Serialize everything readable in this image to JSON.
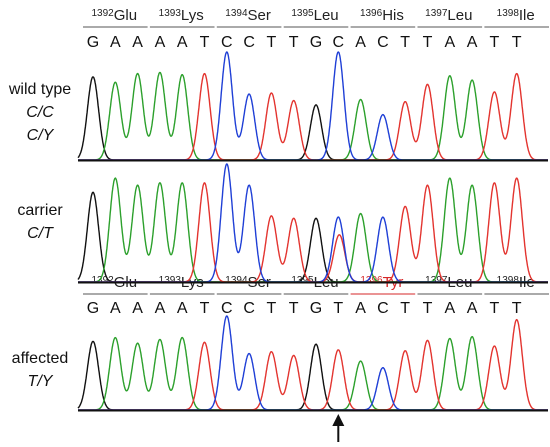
{
  "colors": {
    "A": "#2ca02c",
    "C": "#1f3fd6",
    "G": "#111111",
    "T": "#e3342f",
    "mutation": "#d62728",
    "text": "#111111"
  },
  "top_codons": [
    {
      "number": "1392",
      "aa": "Glu"
    },
    {
      "number": "1393",
      "aa": "Lys"
    },
    {
      "number": "1394",
      "aa": "Ser"
    },
    {
      "number": "1395",
      "aa": "Leu"
    },
    {
      "number": "1396",
      "aa": "His"
    },
    {
      "number": "1397",
      "aa": "Leu"
    },
    {
      "number": "1398",
      "aa": "Ile"
    }
  ],
  "top_bases": [
    "G",
    "A",
    "A",
    "A",
    "A",
    "T",
    "C",
    "C",
    "T",
    "T",
    "G",
    "C",
    "A",
    "C",
    "T",
    "T",
    "A",
    "A",
    "T",
    "T"
  ],
  "bottom_codons": [
    {
      "number": "1392",
      "aa": "Glu"
    },
    {
      "number": "1393",
      "aa": "Lys"
    },
    {
      "number": "1394",
      "aa": "Ser"
    },
    {
      "number": "1395",
      "aa": "Leu"
    },
    {
      "number": "1396",
      "aa": "Tyr",
      "mutated": true
    },
    {
      "number": "1397",
      "aa": "Leu"
    },
    {
      "number": "1398",
      "aa": "Ile"
    }
  ],
  "bottom_bases": [
    "G",
    "A",
    "A",
    "A",
    "A",
    "T",
    "C",
    "C",
    "T",
    "T",
    "G",
    "T",
    "A",
    "C",
    "T",
    "T",
    "A",
    "A",
    "T",
    "T"
  ],
  "mutated_base_index": 11,
  "rows": [
    {
      "name": "wild-type",
      "label": "wild type",
      "genotypes": [
        "C/C",
        "C/Y"
      ],
      "peaks": [
        {
          "base": "G",
          "h": 0.77
        },
        {
          "base": "A",
          "h": 0.72
        },
        {
          "base": "A",
          "h": 0.8
        },
        {
          "base": "A",
          "h": 0.81
        },
        {
          "base": "A",
          "h": 0.79
        },
        {
          "base": "T",
          "h": 0.8
        },
        {
          "base": "C",
          "h": 1.0
        },
        {
          "base": "C",
          "h": 0.61
        },
        {
          "base": "T",
          "h": 0.62
        },
        {
          "base": "T",
          "h": 0.55
        },
        {
          "base": "G",
          "h": 0.51
        },
        {
          "base": "C",
          "h": 1.0
        },
        {
          "base": "A",
          "h": 0.56
        },
        {
          "base": "C",
          "h": 0.42
        },
        {
          "base": "T",
          "h": 0.54
        },
        {
          "base": "T",
          "h": 0.7
        },
        {
          "base": "A",
          "h": 0.78
        },
        {
          "base": "A",
          "h": 0.74
        },
        {
          "base": "T",
          "h": 0.63
        },
        {
          "base": "T",
          "h": 0.8
        }
      ]
    },
    {
      "name": "carrier",
      "label": "carrier",
      "genotypes": [
        "C/T"
      ],
      "peaks": [
        {
          "base": "G",
          "h": 0.76
        },
        {
          "base": "A",
          "h": 0.88
        },
        {
          "base": "A",
          "h": 0.82
        },
        {
          "base": "A",
          "h": 0.84
        },
        {
          "base": "A",
          "h": 0.84
        },
        {
          "base": "T",
          "h": 0.84
        },
        {
          "base": "C",
          "h": 1.0
        },
        {
          "base": "C",
          "h": 0.82
        },
        {
          "base": "T",
          "h": 0.56
        },
        {
          "base": "T",
          "h": 0.54
        },
        {
          "base": "G",
          "h": 0.54
        },
        {
          "base": "C",
          "h": 0.55,
          "second": "T",
          "h2": 0.4
        },
        {
          "base": "A",
          "h": 0.58
        },
        {
          "base": "C",
          "h": 0.55
        },
        {
          "base": "T",
          "h": 0.64
        },
        {
          "base": "T",
          "h": 0.82
        },
        {
          "base": "A",
          "h": 0.88
        },
        {
          "base": "A",
          "h": 0.82
        },
        {
          "base": "T",
          "h": 0.84
        },
        {
          "base": "T",
          "h": 0.88
        }
      ]
    },
    {
      "name": "affected",
      "label": "affected",
      "genotypes": [
        "T/Y"
      ],
      "peaks": [
        {
          "base": "G",
          "h": 0.73
        },
        {
          "base": "A",
          "h": 0.77
        },
        {
          "base": "A",
          "h": 0.71
        },
        {
          "base": "A",
          "h": 0.75
        },
        {
          "base": "A",
          "h": 0.77
        },
        {
          "base": "T",
          "h": 0.72
        },
        {
          "base": "C",
          "h": 1.0
        },
        {
          "base": "C",
          "h": 0.6
        },
        {
          "base": "T",
          "h": 0.62
        },
        {
          "base": "T",
          "h": 0.58
        },
        {
          "base": "G",
          "h": 0.7
        },
        {
          "base": "T",
          "h": 0.64
        },
        {
          "base": "A",
          "h": 0.52
        },
        {
          "base": "C",
          "h": 0.45
        },
        {
          "base": "T",
          "h": 0.63
        },
        {
          "base": "T",
          "h": 0.74
        },
        {
          "base": "A",
          "h": 0.76
        },
        {
          "base": "A",
          "h": 0.78
        },
        {
          "base": "T",
          "h": 0.68
        },
        {
          "base": "T",
          "h": 0.96
        }
      ]
    }
  ]
}
